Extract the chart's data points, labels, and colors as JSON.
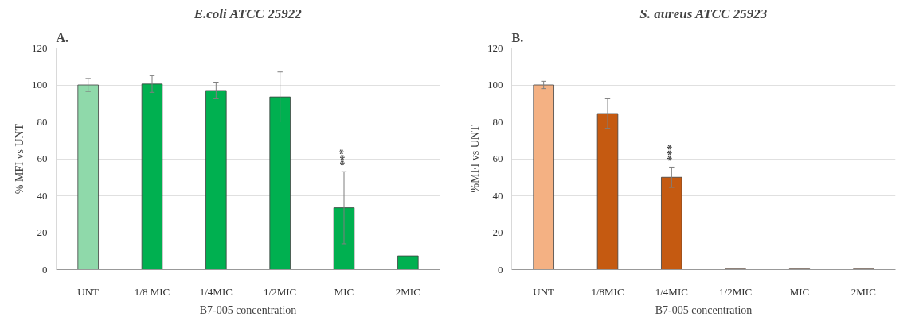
{
  "chart_data": [
    {
      "type": "bar",
      "title": "E.coli ATCC 25922",
      "xlabel": "B7-005 concentration",
      "ylabel": "% MFI vs UNT",
      "categories": [
        "UNT",
        "1/8 MIC",
        "1/4MIC",
        "1/2MIC",
        "MIC",
        "2MIC"
      ],
      "values": [
        100,
        100.5,
        97,
        93.5,
        33.5,
        7.5
      ],
      "errors": [
        3.5,
        4.5,
        4.5,
        13.5,
        19.5,
        null
      ],
      "colors": [
        "#8fd9aa",
        "#00b050",
        "#00b050",
        "#00b050",
        "#00b050",
        "#00b050"
      ],
      "ylim": [
        0,
        120
      ],
      "yticks": [
        0,
        20,
        40,
        60,
        80,
        100,
        120
      ],
      "grid": "y",
      "annotations": [
        "A.",
        {
          "text": "***",
          "x": "MIC",
          "y": 53
        }
      ]
    },
    {
      "type": "bar",
      "title": "S. aureus ATCC 25923",
      "xlabel": "B7-005 concentration",
      "ylabel": "%MFI vs UNT",
      "categories": [
        "UNT",
        "1/8MIC",
        "1/4MIC",
        "1/2MIC",
        "MIC",
        "2MIC"
      ],
      "values": [
        100,
        84.5,
        50,
        0.3,
        0.3,
        0.3
      ],
      "errors": [
        2,
        8,
        5.5,
        null,
        null,
        null
      ],
      "colors": [
        "#f4b183",
        "#c55a11",
        "#c55a11",
        "#c55a11",
        "#c55a11",
        "#c55a11"
      ],
      "ylim": [
        0,
        120
      ],
      "yticks": [
        0,
        20,
        40,
        60,
        80,
        100,
        120
      ],
      "grid": "y",
      "annotations": [
        "B.",
        {
          "text": "***",
          "x": "1/4MIC",
          "y": 55.5
        }
      ]
    }
  ]
}
